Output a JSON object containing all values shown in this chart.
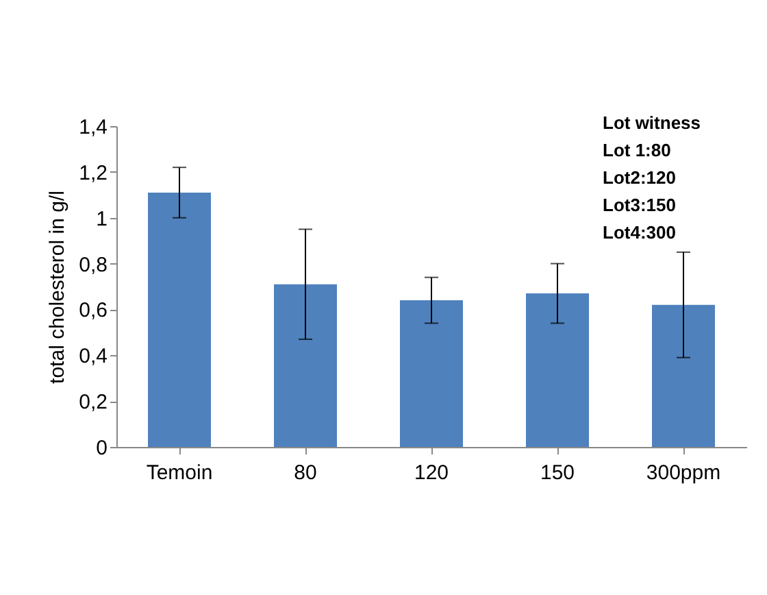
{
  "chart_data": {
    "type": "bar",
    "ylabel": "total  cholesterol  in g/l",
    "categories": [
      "Temoin",
      "80",
      "120",
      "150",
      "300ppm"
    ],
    "values": [
      1.11,
      0.71,
      0.64,
      0.67,
      0.62
    ],
    "errors": [
      0.11,
      0.24,
      0.1,
      0.13,
      0.23
    ],
    "color": "#4f81bd",
    "ylim": [
      0,
      1.4
    ],
    "yticks": [
      0,
      {
        "value": 0.2,
        "label": "0,2"
      },
      {
        "value": 0.4,
        "label": "0,4"
      },
      {
        "value": 0.6,
        "label": "0,6"
      },
      {
        "value": 0.8,
        "label": "0,8"
      },
      1,
      {
        "value": 1.2,
        "label": "1,2"
      },
      {
        "value": 1.4,
        "label": "1,4"
      }
    ],
    "annotations": [
      "Lot witness",
      "Lot  1:80",
      "Lot2:120",
      "Lot3:150",
      "Lot4:300"
    ],
    "grid": false
  }
}
